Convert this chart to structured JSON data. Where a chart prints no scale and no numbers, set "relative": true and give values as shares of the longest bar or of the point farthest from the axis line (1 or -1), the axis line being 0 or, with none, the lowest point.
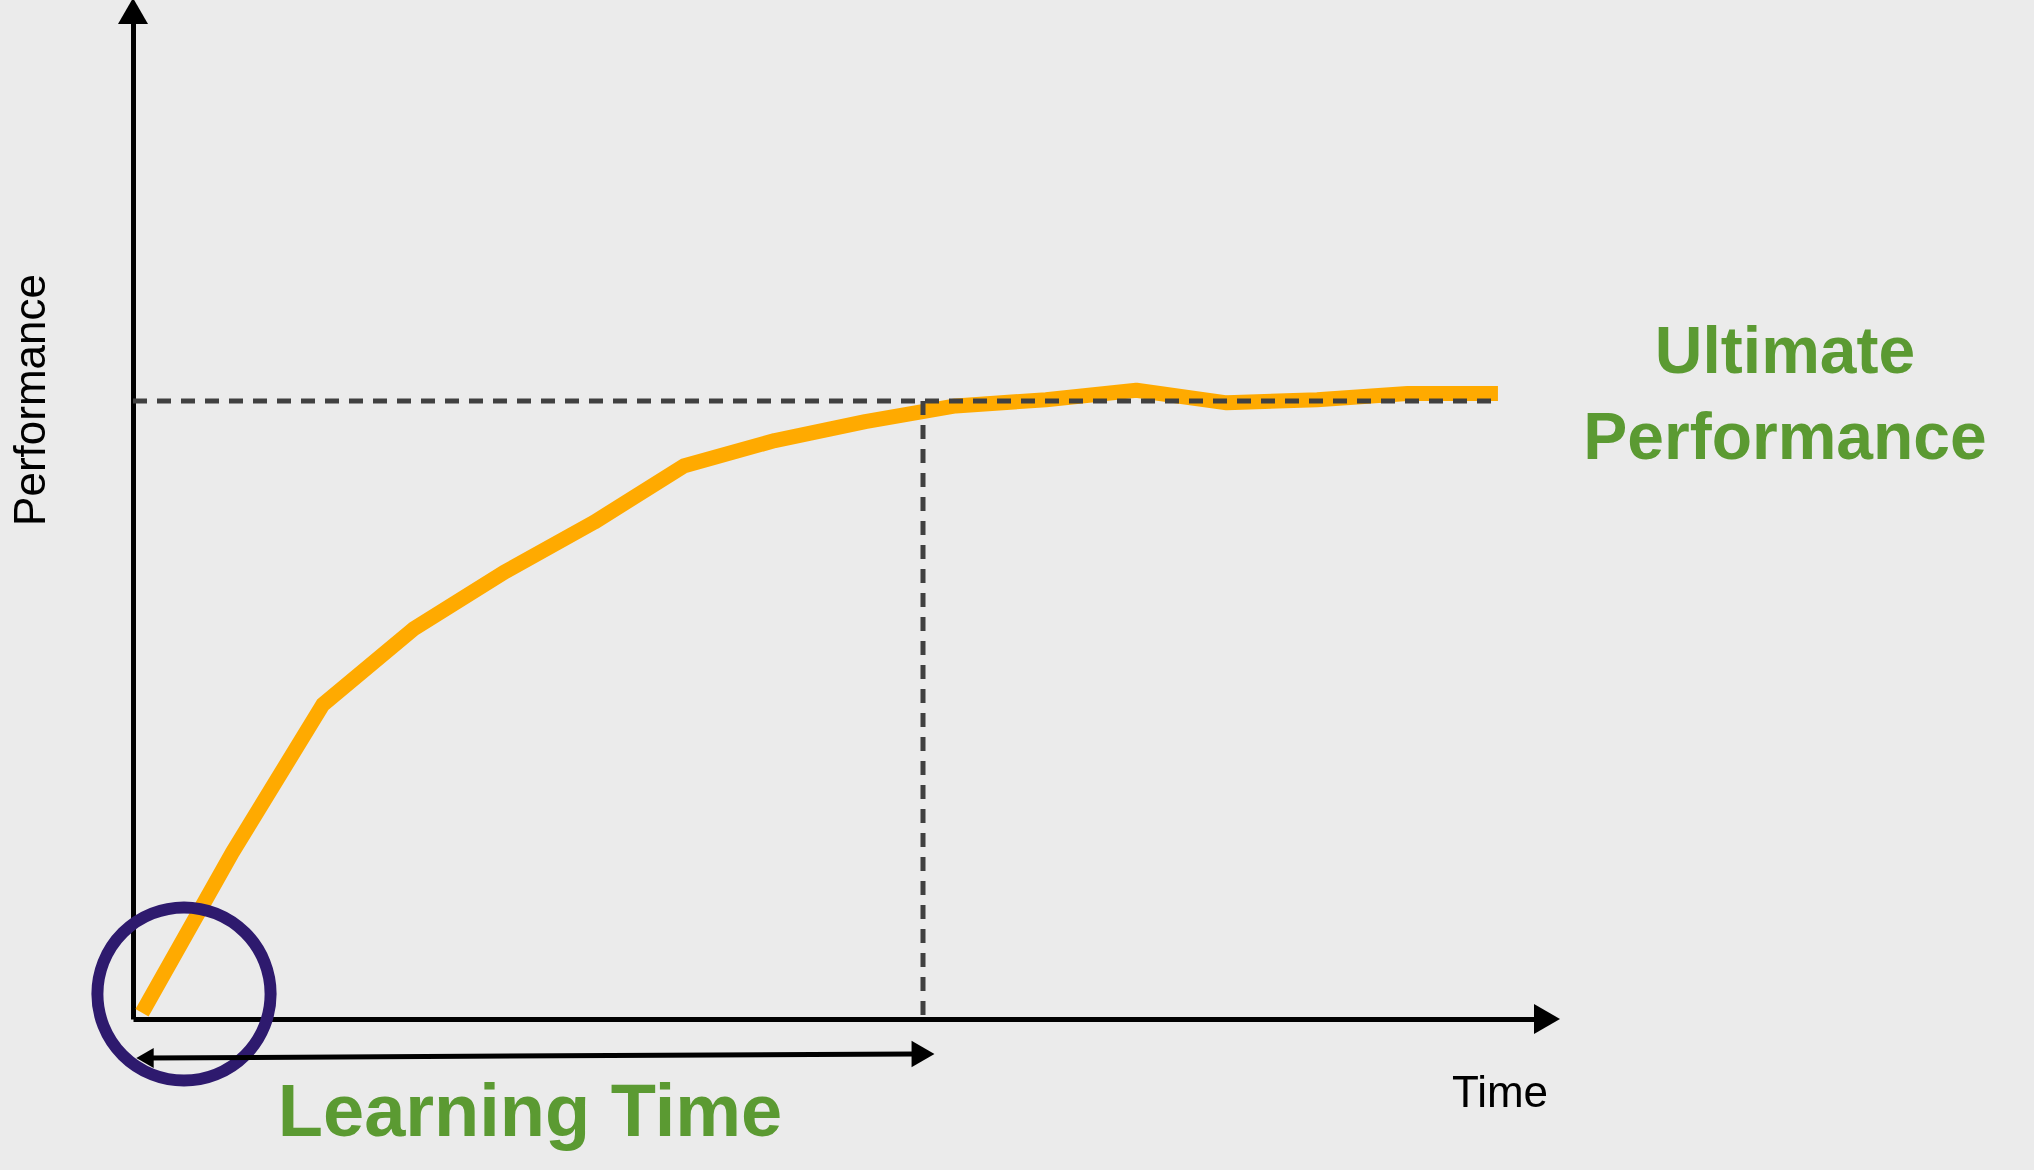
{
  "chart_data": {
    "type": "line",
    "relative": true,
    "xlabel": "Time",
    "ylabel": "Performance",
    "categories": [
      null,
      null,
      null,
      null,
      null,
      null,
      null,
      null,
      null,
      null,
      null,
      null,
      null,
      null,
      null,
      null
    ],
    "series": [
      {
        "color": "#ffaa00",
        "values": [
          0.01,
          0.265,
          0.5,
          0.62,
          0.71,
          0.79,
          0.88,
          0.92,
          0.95,
          0.975,
          0.985,
          1.0,
          0.98,
          0.985,
          0.995,
          0.995
        ]
      }
    ],
    "ref_lines": [
      {
        "axis": "y",
        "value": 0.983,
        "color": "#404040",
        "line_style": "dashed"
      }
    ],
    "annotations": [
      "Ultimate Performance",
      "Learning Time"
    ],
    "marker": "none",
    "line_style": "solid",
    "grid": false,
    "tick_labels": false
  }
}
